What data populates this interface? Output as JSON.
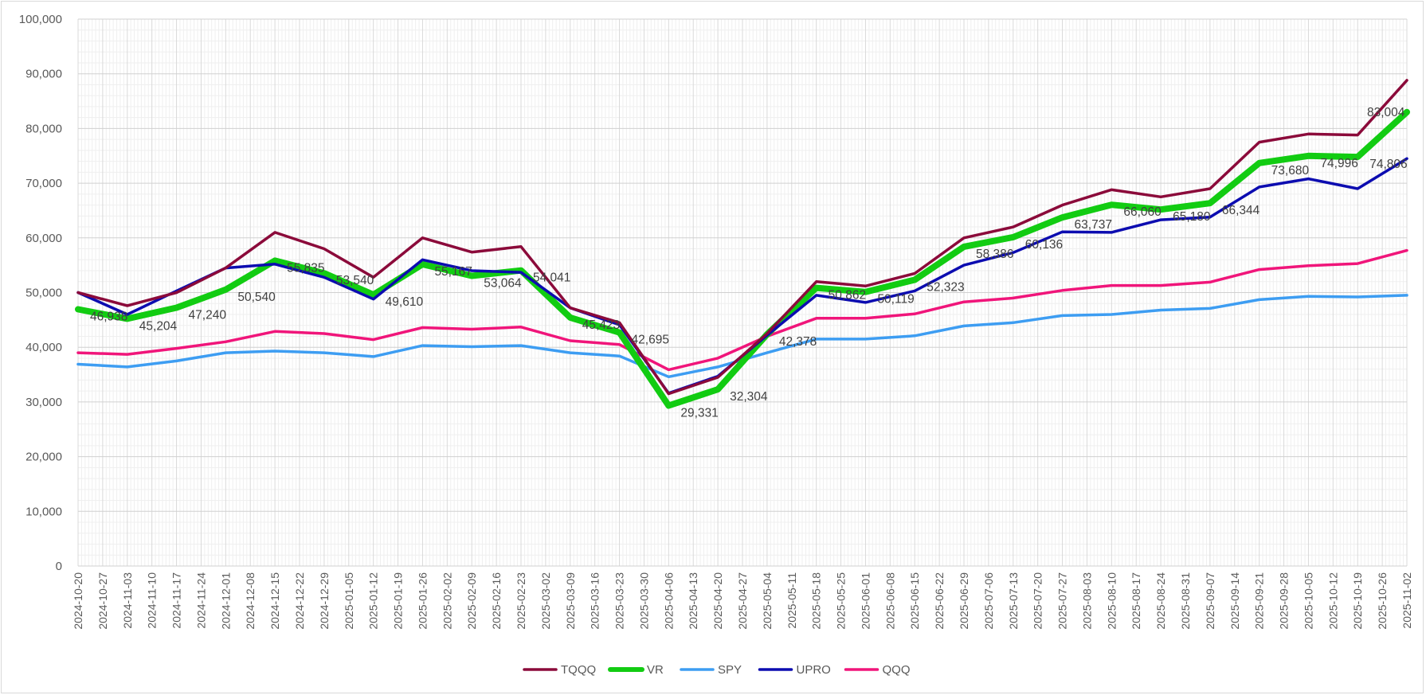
{
  "chart_data": {
    "type": "line",
    "title": "",
    "xlabel": "",
    "ylabel": "",
    "ylim": [
      0,
      100000
    ],
    "y_ticks": [
      "0",
      "10,000",
      "20,000",
      "30,000",
      "40,000",
      "50,000",
      "60,000",
      "70,000",
      "80,000",
      "90,000",
      "100,000"
    ],
    "grid": true,
    "legend_position": "bottom",
    "x": [
      "2024-10-20",
      "2024-10-27",
      "2024-11-03",
      "2024-11-10",
      "2024-11-17",
      "2024-11-24",
      "2024-12-01",
      "2024-12-08",
      "2024-12-15",
      "2024-12-22",
      "2024-12-29",
      "2025-01-05",
      "2025-01-12",
      "2025-01-19",
      "2025-01-26",
      "2025-02-02",
      "2025-02-09",
      "2025-02-16",
      "2025-02-23",
      "2025-03-02",
      "2025-03-09",
      "2025-03-16",
      "2025-03-23",
      "2025-03-30",
      "2025-04-06",
      "2025-04-13",
      "2025-04-20",
      "2025-04-27",
      "2025-05-04",
      "2025-05-11",
      "2025-05-18",
      "2025-05-25",
      "2025-06-01",
      "2025-06-08",
      "2025-06-15",
      "2025-06-22",
      "2025-06-29",
      "2025-07-06",
      "2025-07-13",
      "2025-07-20",
      "2025-07-27",
      "2025-08-03",
      "2025-08-10",
      "2025-08-17",
      "2025-08-24",
      "2025-08-31",
      "2025-09-07",
      "2025-09-14",
      "2025-09-21",
      "2025-09-28",
      "2025-10-05",
      "2025-10-12",
      "2025-10-19",
      "2025-10-26",
      "2025-11-02"
    ],
    "series": [
      {
        "name": "TQQQ",
        "color": "#8b0a3a",
        "width": 3.5,
        "points": [
          [
            "2024-10-20",
            50000
          ],
          [
            "2024-11-03",
            47600
          ],
          [
            "2024-11-17",
            50000
          ],
          [
            "2024-12-01",
            54500
          ],
          [
            "2024-12-15",
            61000
          ],
          [
            "2024-12-29",
            58000
          ],
          [
            "2025-01-12",
            52800
          ],
          [
            "2025-01-26",
            60000
          ],
          [
            "2025-02-09",
            57400
          ],
          [
            "2025-02-23",
            58400
          ],
          [
            "2025-03-09",
            47200
          ],
          [
            "2025-03-23",
            44500
          ],
          [
            "2025-04-06",
            31500
          ],
          [
            "2025-04-20",
            34500
          ],
          [
            "2025-05-04",
            42500
          ],
          [
            "2025-05-18",
            52000
          ],
          [
            "2025-06-01",
            51200
          ],
          [
            "2025-06-15",
            53500
          ],
          [
            "2025-06-29",
            60000
          ],
          [
            "2025-07-13",
            62000
          ],
          [
            "2025-07-27",
            66000
          ],
          [
            "2025-08-10",
            68800
          ],
          [
            "2025-08-24",
            67500
          ],
          [
            "2025-09-07",
            69000
          ],
          [
            "2025-09-21",
            77500
          ],
          [
            "2025-10-05",
            79000
          ],
          [
            "2025-10-19",
            78800
          ],
          [
            "2025-11-02",
            88800
          ]
        ]
      },
      {
        "name": "VR",
        "color": "#12cc12",
        "width": 8,
        "points": [
          [
            "2024-10-20",
            46938
          ],
          [
            "2024-11-03",
            45204
          ],
          [
            "2024-11-17",
            47240
          ],
          [
            "2024-12-01",
            50540
          ],
          [
            "2024-12-15",
            55835
          ],
          [
            "2024-12-29",
            53540
          ],
          [
            "2025-01-12",
            49610
          ],
          [
            "2025-01-26",
            55167
          ],
          [
            "2025-02-09",
            53064
          ],
          [
            "2025-02-23",
            54041
          ],
          [
            "2025-03-09",
            45423
          ],
          [
            "2025-03-23",
            42695
          ],
          [
            "2025-04-06",
            29331
          ],
          [
            "2025-04-20",
            32304
          ],
          [
            "2025-05-04",
            42378
          ],
          [
            "2025-05-18",
            50862
          ],
          [
            "2025-06-01",
            50119
          ],
          [
            "2025-06-15",
            52323
          ],
          [
            "2025-06-29",
            58386
          ],
          [
            "2025-07-13",
            60136
          ],
          [
            "2025-07-27",
            63737
          ],
          [
            "2025-08-10",
            66060
          ],
          [
            "2025-08-24",
            65180
          ],
          [
            "2025-09-07",
            66344
          ],
          [
            "2025-09-21",
            73680
          ],
          [
            "2025-10-05",
            74996
          ],
          [
            "2025-10-19",
            74806
          ],
          [
            "2025-11-02",
            83004
          ]
        ]
      },
      {
        "name": "SPY",
        "color": "#3d9df2",
        "width": 3.5,
        "points": [
          [
            "2024-10-20",
            36900
          ],
          [
            "2024-11-03",
            36400
          ],
          [
            "2024-11-17",
            37500
          ],
          [
            "2024-12-01",
            39000
          ],
          [
            "2024-12-15",
            39300
          ],
          [
            "2024-12-29",
            39000
          ],
          [
            "2025-01-12",
            38300
          ],
          [
            "2025-01-26",
            40300
          ],
          [
            "2025-02-09",
            40100
          ],
          [
            "2025-02-23",
            40300
          ],
          [
            "2025-03-09",
            39000
          ],
          [
            "2025-03-23",
            38400
          ],
          [
            "2025-04-06",
            34600
          ],
          [
            "2025-04-20",
            36400
          ],
          [
            "2025-05-04",
            39000
          ],
          [
            "2025-05-18",
            41500
          ],
          [
            "2025-06-01",
            41500
          ],
          [
            "2025-06-15",
            42100
          ],
          [
            "2025-06-29",
            43900
          ],
          [
            "2025-07-13",
            44500
          ],
          [
            "2025-07-27",
            45800
          ],
          [
            "2025-08-10",
            46000
          ],
          [
            "2025-08-24",
            46800
          ],
          [
            "2025-09-07",
            47100
          ],
          [
            "2025-09-21",
            48700
          ],
          [
            "2025-10-05",
            49300
          ],
          [
            "2025-10-19",
            49200
          ],
          [
            "2025-11-02",
            49500
          ]
        ]
      },
      {
        "name": "UPRO",
        "color": "#0c0cb0",
        "width": 3.5,
        "points": [
          [
            "2024-10-20",
            50000
          ],
          [
            "2024-11-03",
            46000
          ],
          [
            "2024-11-17",
            50300
          ],
          [
            "2024-12-01",
            54500
          ],
          [
            "2024-12-15",
            55200
          ],
          [
            "2024-12-29",
            52800
          ],
          [
            "2025-01-12",
            48800
          ],
          [
            "2025-01-26",
            56000
          ],
          [
            "2025-02-09",
            54000
          ],
          [
            "2025-02-23",
            53700
          ],
          [
            "2025-03-09",
            47200
          ],
          [
            "2025-03-23",
            44100
          ],
          [
            "2025-04-06",
            31600
          ],
          [
            "2025-04-20",
            34700
          ],
          [
            "2025-05-04",
            42200
          ],
          [
            "2025-05-18",
            49500
          ],
          [
            "2025-06-01",
            48200
          ],
          [
            "2025-06-15",
            50300
          ],
          [
            "2025-06-29",
            55000
          ],
          [
            "2025-07-13",
            57300
          ],
          [
            "2025-07-27",
            61100
          ],
          [
            "2025-08-10",
            61000
          ],
          [
            "2025-08-24",
            63300
          ],
          [
            "2025-09-07",
            63800
          ],
          [
            "2025-09-21",
            69300
          ],
          [
            "2025-10-05",
            70800
          ],
          [
            "2025-10-19",
            69000
          ],
          [
            "2025-11-02",
            74500
          ]
        ]
      },
      {
        "name": "QQQ",
        "color": "#f0157a",
        "width": 3.5,
        "points": [
          [
            "2024-10-20",
            39000
          ],
          [
            "2024-11-03",
            38700
          ],
          [
            "2024-11-17",
            39800
          ],
          [
            "2024-12-01",
            41000
          ],
          [
            "2024-12-15",
            42900
          ],
          [
            "2024-12-29",
            42500
          ],
          [
            "2025-01-12",
            41400
          ],
          [
            "2025-01-26",
            43600
          ],
          [
            "2025-02-09",
            43300
          ],
          [
            "2025-02-23",
            43700
          ],
          [
            "2025-03-09",
            41200
          ],
          [
            "2025-03-23",
            40500
          ],
          [
            "2025-04-06",
            35900
          ],
          [
            "2025-04-20",
            38000
          ],
          [
            "2025-05-04",
            42000
          ],
          [
            "2025-05-18",
            45300
          ],
          [
            "2025-06-01",
            45300
          ],
          [
            "2025-06-15",
            46100
          ],
          [
            "2025-06-29",
            48300
          ],
          [
            "2025-07-13",
            49000
          ],
          [
            "2025-07-27",
            50400
          ],
          [
            "2025-08-10",
            51300
          ],
          [
            "2025-08-24",
            51300
          ],
          [
            "2025-09-07",
            51900
          ],
          [
            "2025-09-21",
            54200
          ],
          [
            "2025-10-05",
            54900
          ],
          [
            "2025-10-19",
            55300
          ],
          [
            "2025-11-02",
            57700
          ]
        ]
      }
    ],
    "data_labels": [
      {
        "x": "2024-10-20",
        "value": 46938,
        "text": "46,938"
      },
      {
        "x": "2024-11-03",
        "value": 45204,
        "text": "45,204"
      },
      {
        "x": "2024-11-17",
        "value": 47240,
        "text": "47,240"
      },
      {
        "x": "2024-12-01",
        "value": 50540,
        "text": "50,540"
      },
      {
        "x": "2024-12-15",
        "value": 55835,
        "text": "55,835"
      },
      {
        "x": "2024-12-29",
        "value": 53540,
        "text": "53,540"
      },
      {
        "x": "2025-01-12",
        "value": 49610,
        "text": "49,610"
      },
      {
        "x": "2025-01-26",
        "value": 55167,
        "text": "55,167"
      },
      {
        "x": "2025-02-09",
        "value": 53064,
        "text": "53,064"
      },
      {
        "x": "2025-02-23",
        "value": 54041,
        "text": "54,041"
      },
      {
        "x": "2025-03-09",
        "value": 45423,
        "text": "45,423"
      },
      {
        "x": "2025-03-23",
        "value": 42695,
        "text": "42,695"
      },
      {
        "x": "2025-04-06",
        "value": 29331,
        "text": "29,331"
      },
      {
        "x": "2025-04-20",
        "value": 32304,
        "text": "32,304"
      },
      {
        "x": "2025-05-04",
        "value": 42378,
        "text": "42,378"
      },
      {
        "x": "2025-05-18",
        "value": 50862,
        "text": "50,862"
      },
      {
        "x": "2025-06-01",
        "value": 50119,
        "text": "50,119"
      },
      {
        "x": "2025-06-15",
        "value": 52323,
        "text": "52,323"
      },
      {
        "x": "2025-06-29",
        "value": 58386,
        "text": "58,386"
      },
      {
        "x": "2025-07-13",
        "value": 60136,
        "text": "60,136"
      },
      {
        "x": "2025-07-27",
        "value": 63737,
        "text": "63,737"
      },
      {
        "x": "2025-08-10",
        "value": 66060,
        "text": "66,060"
      },
      {
        "x": "2025-08-24",
        "value": 65180,
        "text": "65,180"
      },
      {
        "x": "2025-09-07",
        "value": 66344,
        "text": "66,344"
      },
      {
        "x": "2025-09-21",
        "value": 73680,
        "text": "73,680"
      },
      {
        "x": "2025-10-05",
        "value": 74996,
        "text": "74,996"
      },
      {
        "x": "2025-10-19",
        "value": 74806,
        "text": "74,806"
      },
      {
        "x": "2025-11-02",
        "value": 83004,
        "text": "83,004"
      }
    ]
  }
}
